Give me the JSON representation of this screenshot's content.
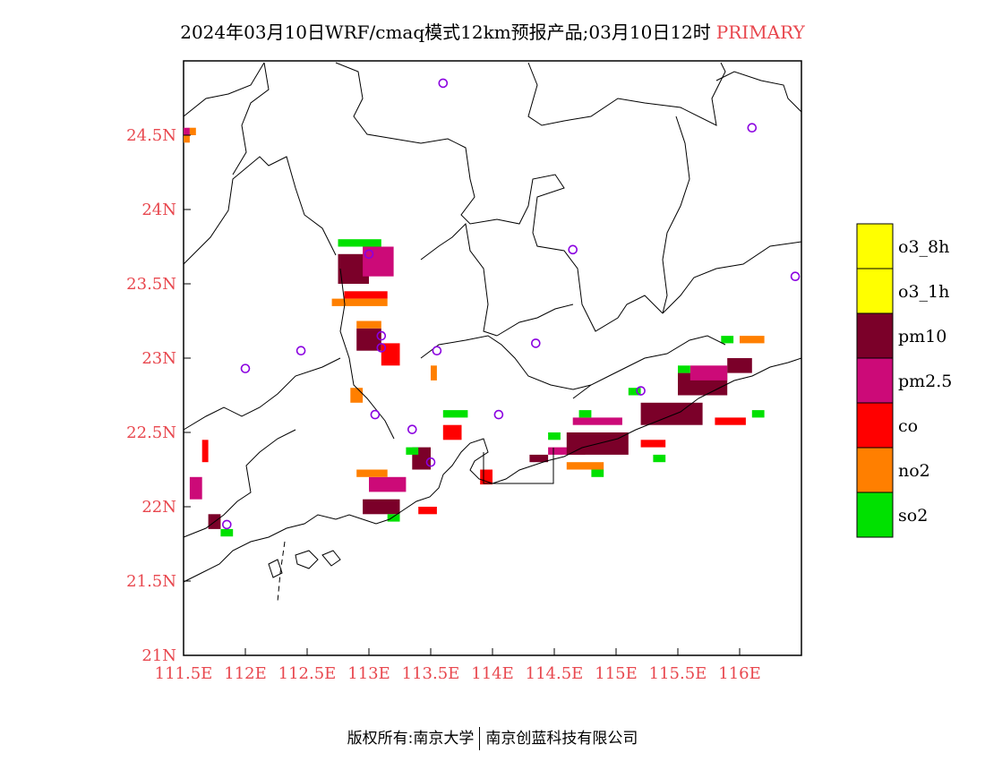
{
  "title": {
    "main": "2024年03月10日WRF/cmaq模式12km预报产品;03月10日12时",
    "tag": "PRIMARY"
  },
  "map": {
    "lon_range": [
      111.5,
      116.5
    ],
    "lat_range": [
      21.0,
      25.0
    ],
    "lat_ticks": [
      "24.5N",
      "24N",
      "23.5N",
      "23N",
      "22.5N",
      "22N",
      "21.5N",
      "21N"
    ],
    "lon_ticks": [
      "111.5E",
      "112E",
      "112.5E",
      "113E",
      "113.5E",
      "114E",
      "114.5E",
      "115E",
      "115.5E",
      "116E"
    ],
    "stations": [],
    "pollution_cells": "grid of primary-pollutant categories along the coast"
  },
  "legend": {
    "items": [
      {
        "label": "o3_8h",
        "color": "#ffff00"
      },
      {
        "label": "o3_1h",
        "color": "#ffff00"
      },
      {
        "label": "pm10",
        "color": "#7b0029"
      },
      {
        "label": "pm2.5",
        "color": "#cc0a78"
      },
      {
        "label": "co",
        "color": "#ff0000"
      },
      {
        "label": "no2",
        "color": "#ff7f00"
      },
      {
        "label": "so2",
        "color": "#00e100"
      }
    ]
  },
  "footer": {
    "left": "版权所有:南京大学",
    "right": "南京创蓝科技有限公司"
  },
  "colors": {
    "tick_color": "#e8474e",
    "station_color": "#8a00e0",
    "boundary_color": "#000000"
  }
}
